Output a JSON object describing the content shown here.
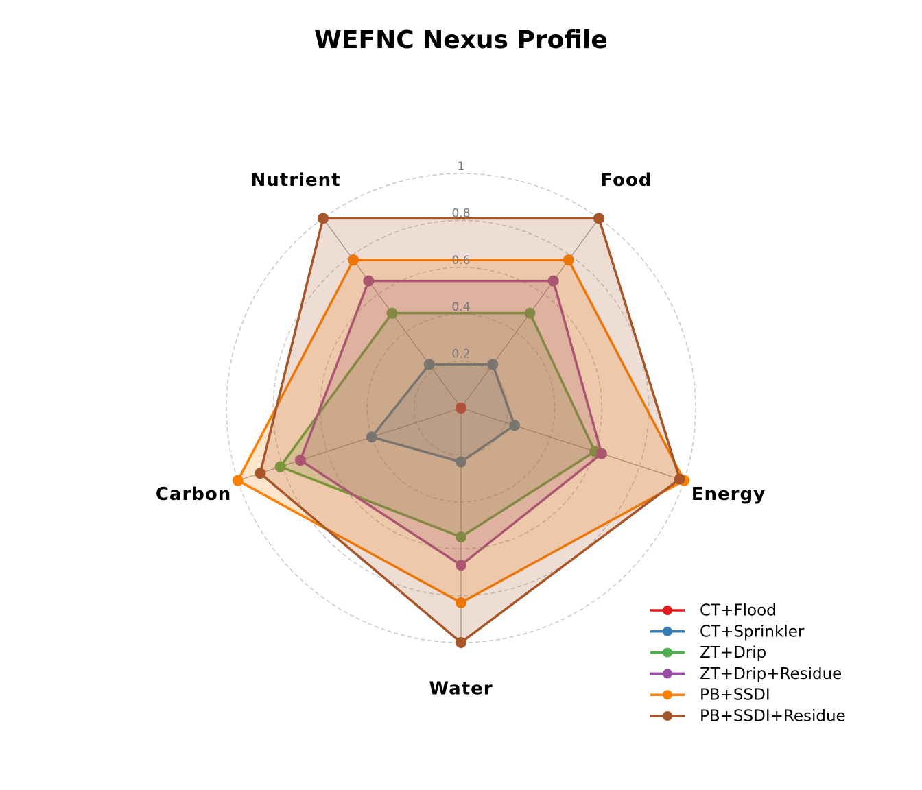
{
  "chart_data": {
    "type": "radar",
    "title": "WEFNC Nexus Profile",
    "categories": [
      "Food",
      "Energy",
      "Water",
      "Carbon",
      "Nutrient"
    ],
    "ylim": [
      0,
      1
    ],
    "yticks": [
      0.2,
      0.4,
      0.6,
      0.8,
      1
    ],
    "grid": true,
    "legend": "lower right",
    "series": [
      {
        "name": "CT+Flood",
        "color": "#e41a1c",
        "values": [
          0,
          0,
          0,
          0,
          0
        ]
      },
      {
        "name": "CT+Sprinkler",
        "color": "#377eb8",
        "values": [
          0.23,
          0.24,
          0.23,
          0.4,
          0.23
        ]
      },
      {
        "name": "ZT+Drip",
        "color": "#4daf4a",
        "values": [
          0.5,
          0.6,
          0.55,
          0.81,
          0.5
        ]
      },
      {
        "name": "ZT+Drip+Residue",
        "color": "#984ea3",
        "values": [
          0.67,
          0.63,
          0.67,
          0.72,
          0.67
        ]
      },
      {
        "name": "PB+SSDI",
        "color": "#ff7f00",
        "values": [
          0.78,
          1.0,
          0.83,
          1.0,
          0.78
        ]
      },
      {
        "name": "PB+SSDI+Residue",
        "color": "#a65628",
        "values": [
          1.0,
          0.98,
          1.0,
          0.9,
          1.0
        ]
      }
    ]
  }
}
